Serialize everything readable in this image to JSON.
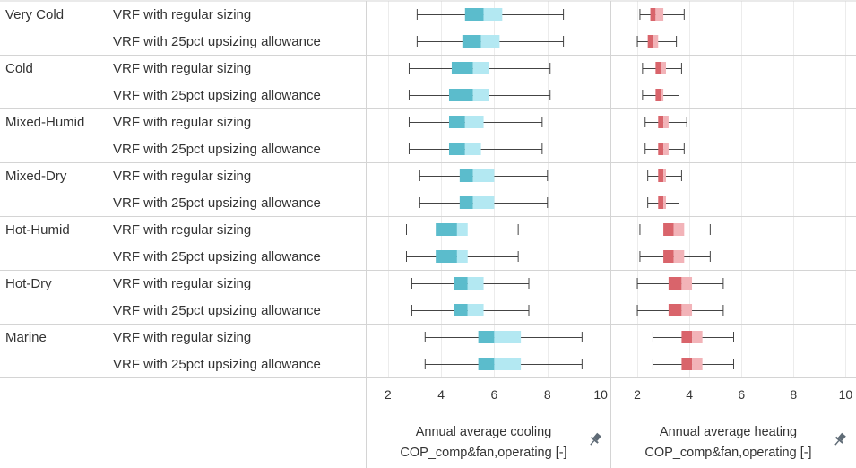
{
  "chart_data": [
    {
      "type": "boxplot",
      "axis_title_lines": [
        "Annual average cooling",
        "COP_comp&fan,operating [-]"
      ],
      "xlim": [
        1.2,
        10.4
      ],
      "ticks": [
        2,
        4,
        6,
        8,
        10
      ],
      "grid": true,
      "colors": {
        "lower_box": "#5bbccc",
        "upper_box": "#b3e8f2",
        "whisker": "#444444"
      },
      "boxes": [
        {
          "region": "Very Cold",
          "sizing": "VRF with regular sizing",
          "min": 3.1,
          "q1": 4.9,
          "median": 5.6,
          "q3": 6.3,
          "max": 8.6
        },
        {
          "region": "Very Cold",
          "sizing": "VRF with 25pct upsizing allowance",
          "min": 3.1,
          "q1": 4.8,
          "median": 5.5,
          "q3": 6.2,
          "max": 8.6
        },
        {
          "region": "Cold",
          "sizing": "VRF with regular sizing",
          "min": 2.8,
          "q1": 4.4,
          "median": 5.2,
          "q3": 5.8,
          "max": 8.1
        },
        {
          "region": "Cold",
          "sizing": "VRF with 25pct upsizing allowance",
          "min": 2.8,
          "q1": 4.3,
          "median": 5.2,
          "q3": 5.8,
          "max": 8.1
        },
        {
          "region": "Mixed-Humid",
          "sizing": "VRF with regular sizing",
          "min": 2.8,
          "q1": 4.3,
          "median": 4.9,
          "q3": 5.6,
          "max": 7.8
        },
        {
          "region": "Mixed-Humid",
          "sizing": "VRF with 25pct upsizing allowance",
          "min": 2.8,
          "q1": 4.3,
          "median": 4.9,
          "q3": 5.5,
          "max": 7.8
        },
        {
          "region": "Mixed-Dry",
          "sizing": "VRF with regular sizing",
          "min": 3.2,
          "q1": 4.7,
          "median": 5.2,
          "q3": 6.0,
          "max": 8.0
        },
        {
          "region": "Mixed-Dry",
          "sizing": "VRF with 25pct upsizing allowance",
          "min": 3.2,
          "q1": 4.7,
          "median": 5.2,
          "q3": 6.0,
          "max": 8.0
        },
        {
          "region": "Hot-Humid",
          "sizing": "VRF with regular sizing",
          "min": 2.7,
          "q1": 3.8,
          "median": 4.6,
          "q3": 5.0,
          "max": 6.9
        },
        {
          "region": "Hot-Humid",
          "sizing": "VRF with 25pct upsizing allowance",
          "min": 2.7,
          "q1": 3.8,
          "median": 4.6,
          "q3": 5.0,
          "max": 6.9
        },
        {
          "region": "Hot-Dry",
          "sizing": "VRF with regular sizing",
          "min": 2.9,
          "q1": 4.5,
          "median": 5.0,
          "q3": 5.6,
          "max": 7.3
        },
        {
          "region": "Hot-Dry",
          "sizing": "VRF with 25pct upsizing allowance",
          "min": 2.9,
          "q1": 4.5,
          "median": 5.0,
          "q3": 5.6,
          "max": 7.3
        },
        {
          "region": "Marine",
          "sizing": "VRF with regular sizing",
          "min": 3.4,
          "q1": 5.4,
          "median": 6.0,
          "q3": 7.0,
          "max": 9.3
        },
        {
          "region": "Marine",
          "sizing": "VRF with 25pct upsizing allowance",
          "min": 3.4,
          "q1": 5.4,
          "median": 6.0,
          "q3": 7.0,
          "max": 9.3
        }
      ]
    },
    {
      "type": "boxplot",
      "axis_title_lines": [
        "Annual average heating",
        "COP_comp&fan,operating [-]"
      ],
      "xlim": [
        1.0,
        10.4
      ],
      "ticks": [
        2,
        4,
        6,
        8,
        10
      ],
      "grid": true,
      "colors": {
        "lower_box": "#d9646b",
        "upper_box": "#f2b3b8",
        "whisker": "#444444"
      },
      "boxes": [
        {
          "region": "Very Cold",
          "sizing": "VRF with regular sizing",
          "min": 2.1,
          "q1": 2.5,
          "median": 2.7,
          "q3": 3.0,
          "max": 3.8
        },
        {
          "region": "Very Cold",
          "sizing": "VRF with 25pct upsizing allowance",
          "min": 2.0,
          "q1": 2.4,
          "median": 2.6,
          "q3": 2.8,
          "max": 3.5
        },
        {
          "region": "Cold",
          "sizing": "VRF with regular sizing",
          "min": 2.2,
          "q1": 2.7,
          "median": 2.9,
          "q3": 3.1,
          "max": 3.7
        },
        {
          "region": "Cold",
          "sizing": "VRF with 25pct upsizing allowance",
          "min": 2.2,
          "q1": 2.7,
          "median": 2.9,
          "q3": 3.0,
          "max": 3.6
        },
        {
          "region": "Mixed-Humid",
          "sizing": "VRF with regular sizing",
          "min": 2.3,
          "q1": 2.8,
          "median": 3.0,
          "q3": 3.2,
          "max": 3.9
        },
        {
          "region": "Mixed-Humid",
          "sizing": "VRF with 25pct upsizing allowance",
          "min": 2.3,
          "q1": 2.8,
          "median": 3.0,
          "q3": 3.2,
          "max": 3.8
        },
        {
          "region": "Mixed-Dry",
          "sizing": "VRF with regular sizing",
          "min": 2.4,
          "q1": 2.8,
          "median": 3.0,
          "q3": 3.1,
          "max": 3.7
        },
        {
          "region": "Mixed-Dry",
          "sizing": "VRF with 25pct upsizing allowance",
          "min": 2.4,
          "q1": 2.8,
          "median": 3.0,
          "q3": 3.1,
          "max": 3.6
        },
        {
          "region": "Hot-Humid",
          "sizing": "VRF with regular sizing",
          "min": 2.1,
          "q1": 3.0,
          "median": 3.4,
          "q3": 3.8,
          "max": 4.8
        },
        {
          "region": "Hot-Humid",
          "sizing": "VRF with 25pct upsizing allowance",
          "min": 2.1,
          "q1": 3.0,
          "median": 3.4,
          "q3": 3.8,
          "max": 4.8
        },
        {
          "region": "Hot-Dry",
          "sizing": "VRF with regular sizing",
          "min": 2.0,
          "q1": 3.2,
          "median": 3.7,
          "q3": 4.1,
          "max": 5.3
        },
        {
          "region": "Hot-Dry",
          "sizing": "VRF with 25pct upsizing allowance",
          "min": 2.0,
          "q1": 3.2,
          "median": 3.7,
          "q3": 4.1,
          "max": 5.3
        },
        {
          "region": "Marine",
          "sizing": "VRF with regular sizing",
          "min": 2.6,
          "q1": 3.7,
          "median": 4.1,
          "q3": 4.5,
          "max": 5.7
        },
        {
          "region": "Marine",
          "sizing": "VRF with 25pct upsizing allowance",
          "min": 2.6,
          "q1": 3.7,
          "median": 4.1,
          "q3": 4.5,
          "max": 5.7
        }
      ]
    }
  ],
  "regions": [
    "Very Cold",
    "Cold",
    "Mixed-Humid",
    "Mixed-Dry",
    "Hot-Humid",
    "Hot-Dry",
    "Marine"
  ],
  "sizing_labels": [
    "VRF with regular sizing",
    "VRF with 25pct upsizing allowance"
  ],
  "icons": {
    "pin": "pin-icon"
  }
}
